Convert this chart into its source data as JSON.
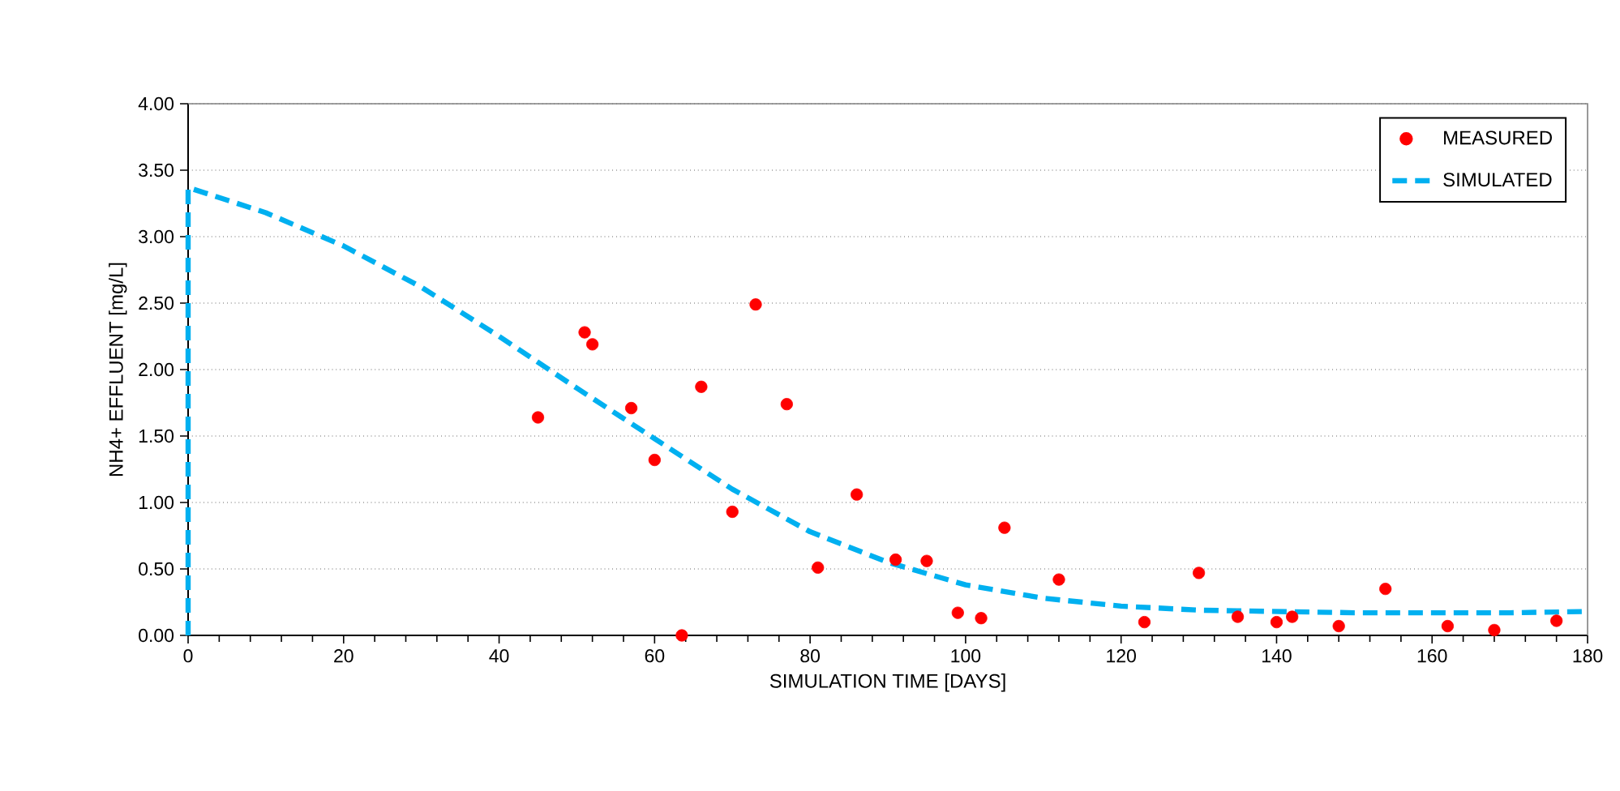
{
  "chart_data": {
    "type": "scatter",
    "xlabel": "SIMULATION TIME  [DAYS]",
    "ylabel": "NH4+ EFFLUENT [mg/L]",
    "xlim": [
      0,
      180
    ],
    "xticks": [
      0,
      20,
      40,
      60,
      80,
      100,
      120,
      140,
      160,
      180
    ],
    "ylim": [
      0,
      4
    ],
    "yticks": [
      {
        "value": 0,
        "label": "0.00"
      },
      {
        "value": 0.5,
        "label": "0.50"
      },
      {
        "value": 1,
        "label": "1.00"
      },
      {
        "value": 1.5,
        "label": "1.50"
      },
      {
        "value": 2,
        "label": "2.00"
      },
      {
        "value": 2.5,
        "label": "2.50"
      },
      {
        "value": 3,
        "label": "3.00"
      },
      {
        "value": 3.5,
        "label": "3.50"
      },
      {
        "value": 4,
        "label": "4.00"
      }
    ],
    "grid": "y",
    "legend": "top right",
    "series": [
      {
        "name": "MEASURED",
        "type": "scatter",
        "marker": "circle",
        "color": "#ff0000",
        "x": [
          45,
          51,
          52,
          57,
          60,
          63.5,
          66,
          70,
          73,
          77,
          81,
          86,
          91,
          95,
          99,
          102,
          105,
          112,
          123,
          130,
          135,
          140,
          142,
          148,
          154,
          162,
          168,
          176
        ],
        "values": [
          1.64,
          2.28,
          2.19,
          1.71,
          1.32,
          0.0,
          1.87,
          0.93,
          2.49,
          1.74,
          0.51,
          1.06,
          0.57,
          0.56,
          0.17,
          0.13,
          0.81,
          0.42,
          0.1,
          0.47,
          0.14,
          0.1,
          0.14,
          0.07,
          0.35,
          0.07,
          0.04,
          0.11
        ]
      },
      {
        "name": "SIMULATED",
        "type": "line",
        "line_style": "dashed",
        "color": "#00b0f0",
        "x": [
          0,
          0,
          10,
          20,
          30,
          40,
          50,
          60,
          70,
          80,
          90,
          100,
          110,
          120,
          130,
          140,
          150,
          160,
          170,
          180
        ],
        "values": [
          0,
          3.37,
          3.18,
          2.93,
          2.62,
          2.25,
          1.86,
          1.48,
          1.1,
          0.78,
          0.55,
          0.38,
          0.28,
          0.22,
          0.19,
          0.18,
          0.17,
          0.17,
          0.17,
          0.18
        ]
      }
    ]
  }
}
